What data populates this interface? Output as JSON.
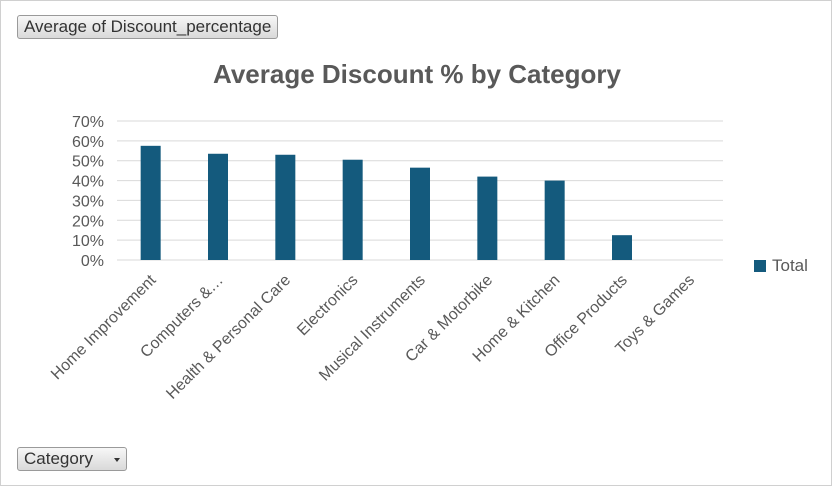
{
  "pivot": {
    "values_field": "Average of Discount_percentage",
    "axis_field": "Category"
  },
  "chart_data": {
    "type": "bar",
    "title": "Average Discount % by Category",
    "categories": [
      "Home Improvement",
      "Computers &…",
      "Health & Personal Care",
      "Electronics",
      "Musical Instruments",
      "Car & Motorbike",
      "Home & Kitchen",
      "Office Products",
      "Toys & Games"
    ],
    "series": [
      {
        "name": "Total",
        "values": [
          0.575,
          0.535,
          0.53,
          0.505,
          0.465,
          0.42,
          0.4,
          0.125,
          0.0
        ],
        "color": "#145a7d"
      }
    ],
    "ylim": [
      0,
      0.7
    ],
    "yticks": [
      0,
      0.1,
      0.2,
      0.3,
      0.4,
      0.5,
      0.6,
      0.7
    ],
    "ytick_labels": [
      "0%",
      "10%",
      "20%",
      "30%",
      "40%",
      "50%",
      "60%",
      "70%"
    ],
    "grid": true,
    "legend": "right"
  }
}
